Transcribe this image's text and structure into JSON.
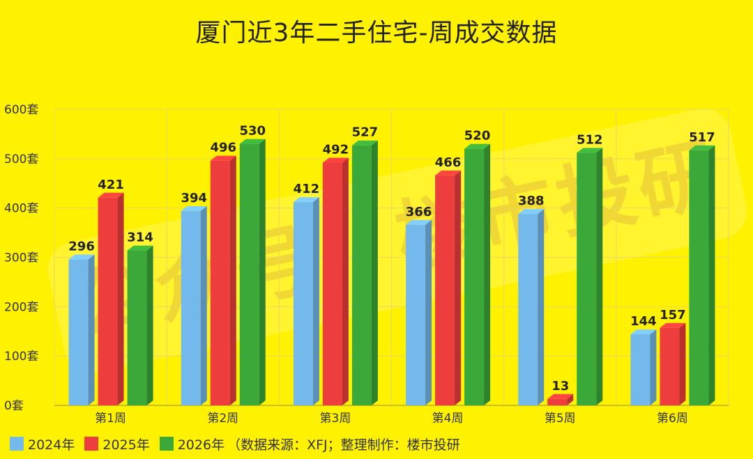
{
  "chart_data": {
    "type": "bar",
    "title": "厦门近3年二手住宅-周成交数据",
    "categories": [
      "第1周",
      "第2周",
      "第3周",
      "第4周",
      "第5周",
      "第6周"
    ],
    "series": [
      {
        "name": "2024年",
        "color": "#74b9ec",
        "values": [
          296,
          394,
          412,
          366,
          388,
          144
        ]
      },
      {
        "name": "2025年",
        "color": "#ee3d3d",
        "values": [
          421,
          496,
          492,
          466,
          13,
          157
        ]
      },
      {
        "name": "2026年",
        "color": "#3aa93a",
        "values": [
          314,
          530,
          527,
          520,
          512,
          517
        ]
      }
    ],
    "yticks": [
      "0套",
      "100套",
      "200套",
      "300套",
      "400套",
      "500套",
      "600套"
    ],
    "ylim": [
      0,
      600
    ],
    "grid": true,
    "legend_position": "bottom-left"
  },
  "legend_note": "（数据来源：XFJ；整理制作：楼市投研",
  "watermark": "公众号：楼市投研"
}
